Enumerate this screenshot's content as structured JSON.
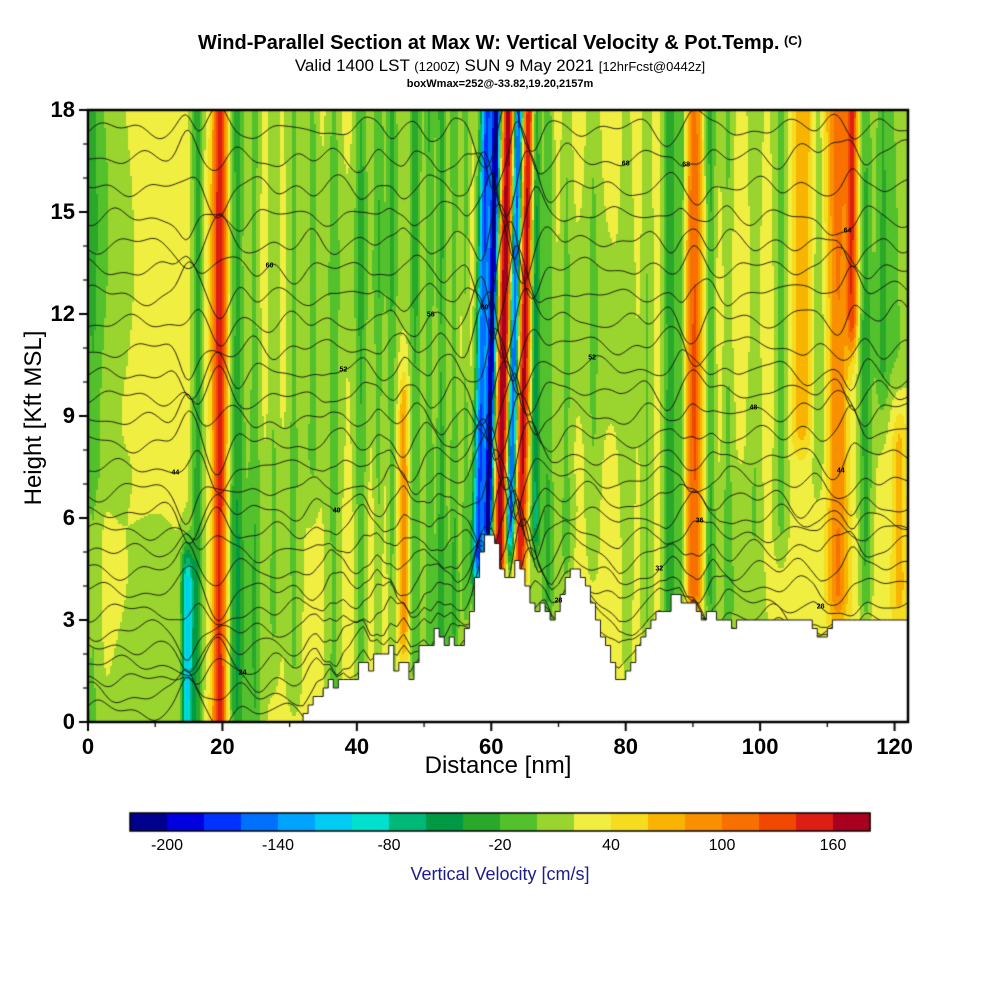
{
  "header": {
    "title_main": "Wind-Parallel Section at Max W: Vertical Velocity & Pot.Temp.",
    "title_suffix": "(C)",
    "valid_prefix": "Valid 1400 LST",
    "valid_zulu": "(1200Z)",
    "valid_date": "SUN 9 May 2021",
    "fcst_tag": "[12hrFcst@0442z]",
    "annotation": "boxWmax=252@-33.82,19.20,2157m"
  },
  "chart_data": {
    "type": "heatmap",
    "title": "Wind-Parallel Section at Max W: Vertical Velocity & Pot.Temp. (C)",
    "subtitle": "Valid 1400 LST (1200Z) SUN 9 May 2021 [12hrFcst@0442z]",
    "annotation": "boxWmax=252@-33.82,19.20,2157m",
    "xlabel": "Distance [nm]",
    "ylabel": "Height [Kft MSL]",
    "xlim": [
      0,
      122
    ],
    "ylim": [
      0,
      18
    ],
    "xticks": [
      0,
      20,
      40,
      60,
      80,
      100,
      120
    ],
    "yticks": [
      0,
      3,
      6,
      9,
      12,
      15,
      18
    ],
    "grid": false,
    "colorbar": {
      "label": "Vertical Velocity [cm/s]",
      "label_color": "#1c1c8a",
      "ticks": [
        -200,
        -140,
        -80,
        -20,
        40,
        100,
        160
      ],
      "range": [
        -220,
        180
      ],
      "segment_step": 20,
      "colors": [
        "#00008e",
        "#0000e0",
        "#0032ff",
        "#0070ff",
        "#00a4ff",
        "#00ccf4",
        "#00e0cc",
        "#00b878",
        "#009a44",
        "#2aa82a",
        "#52c12c",
        "#9ad42e",
        "#f0ee40",
        "#f6dc1e",
        "#f8b400",
        "#f89000",
        "#f87000",
        "#f04800",
        "#dc1e14",
        "#a8001e"
      ]
    },
    "field": {
      "units": "cm/s",
      "background_value": 26,
      "noise": [
        9,
        5
      ],
      "bands_format": [
        "x_nm",
        "width_nm",
        "amplitude_cms",
        "ybottom_kft",
        "ytop_kft",
        "tilt"
      ],
      "bands": [
        [
          0.6,
          1.2,
          -28,
          0,
          18,
          0
        ],
        [
          2,
          3,
          -16,
          8,
          18,
          0
        ],
        [
          4,
          4,
          -14,
          0,
          7,
          0
        ],
        [
          10,
          3,
          -12,
          0,
          5,
          0
        ],
        [
          33,
          5,
          -10,
          0,
          8,
          0
        ],
        [
          46,
          8,
          -12,
          13,
          18,
          0
        ],
        [
          70,
          4,
          -12,
          0,
          6,
          0
        ],
        [
          97,
          4,
          -10,
          3,
          10,
          0
        ],
        [
          120,
          3,
          -24,
          11,
          18,
          0
        ],
        [
          14.8,
          0.9,
          -130,
          0,
          4,
          0
        ],
        [
          16.3,
          0.8,
          -55,
          0,
          18,
          0
        ],
        [
          19.6,
          1.1,
          125,
          0,
          18,
          0
        ],
        [
          22.2,
          1.2,
          -60,
          0,
          18,
          0
        ],
        [
          24.8,
          0.9,
          -38,
          0,
          18,
          0
        ],
        [
          27.6,
          0.8,
          -24,
          3,
          18,
          0
        ],
        [
          30.6,
          0.9,
          -26,
          2,
          18,
          0
        ],
        [
          33.4,
          0.8,
          -28,
          8,
          18,
          0
        ],
        [
          36.6,
          1.0,
          -30,
          0,
          18,
          0
        ],
        [
          40.6,
          0.9,
          -42,
          1,
          18,
          0
        ],
        [
          43.2,
          0.7,
          -30,
          2,
          18,
          0
        ],
        [
          45.2,
          0.7,
          -34,
          2,
          18,
          0
        ],
        [
          47.0,
          0.7,
          58,
          3,
          9,
          0
        ],
        [
          48.7,
          0.8,
          -46,
          2,
          18,
          0
        ],
        [
          50.8,
          0.7,
          -40,
          3,
          18,
          0
        ],
        [
          52.6,
          0.8,
          -52,
          2,
          18,
          0
        ],
        [
          54.5,
          0.7,
          -42,
          3,
          18,
          0
        ],
        [
          56.2,
          0.6,
          -34,
          4,
          18,
          0
        ],
        [
          58.7,
          0.9,
          -190,
          5,
          18,
          0.1
        ],
        [
          60.2,
          0.65,
          -245,
          6,
          18,
          0.1
        ],
        [
          61.9,
          0.95,
          150,
          5,
          18,
          0.1
        ],
        [
          63.5,
          0.65,
          -205,
          6,
          18,
          0.1
        ],
        [
          65.0,
          0.9,
          138,
          5,
          18,
          0.1
        ],
        [
          66.6,
          0.7,
          -85,
          6,
          18,
          0
        ],
        [
          68.4,
          0.9,
          -42,
          4,
          18,
          0
        ],
        [
          71.2,
          0.8,
          -26,
          5,
          18,
          0
        ],
        [
          75.2,
          1.0,
          -22,
          5,
          18,
          0
        ],
        [
          80.2,
          1.0,
          -18,
          2,
          18,
          0
        ],
        [
          83.2,
          0.8,
          -26,
          3,
          18,
          0
        ],
        [
          86.6,
          1.0,
          -58,
          3,
          18,
          0
        ],
        [
          88.3,
          0.6,
          -40,
          4,
          18,
          0
        ],
        [
          90.2,
          1.2,
          92,
          4,
          18,
          0
        ],
        [
          92.6,
          0.8,
          -48,
          4,
          18,
          0
        ],
        [
          95.2,
          0.8,
          -28,
          4,
          18,
          0
        ],
        [
          99.2,
          0.9,
          -22,
          6,
          18,
          0
        ],
        [
          103.2,
          1.0,
          -32,
          6,
          18,
          0
        ],
        [
          106.2,
          1.6,
          52,
          9,
          18,
          0
        ],
        [
          108.7,
          0.8,
          -26,
          8,
          18,
          0
        ],
        [
          111.6,
          1.6,
          78,
          4,
          18,
          0
        ],
        [
          113.7,
          0.8,
          105,
          12,
          18,
          0
        ],
        [
          115.7,
          0.9,
          -48,
          4,
          18,
          0
        ],
        [
          118.2,
          1.0,
          -30,
          10,
          18,
          0
        ],
        [
          120.7,
          1.1,
          42,
          4,
          8,
          0
        ]
      ]
    },
    "contours": {
      "variable": "Potential Temperature",
      "unit": "C",
      "start": 18,
      "step": 2,
      "count": 27
    },
    "terrain_profile": [
      [
        0,
        0
      ],
      [
        32,
        0
      ],
      [
        33,
        0.5
      ],
      [
        34,
        0.9
      ],
      [
        35,
        0.7
      ],
      [
        36,
        1.3
      ],
      [
        37,
        0.9
      ],
      [
        38,
        1.4
      ],
      [
        39,
        1.1
      ],
      [
        40,
        1.3
      ],
      [
        41,
        2.0
      ],
      [
        42,
        1.5
      ],
      [
        43,
        2.2
      ],
      [
        44,
        1.7
      ],
      [
        45,
        2.3
      ],
      [
        46,
        1.5
      ],
      [
        47,
        1.9
      ],
      [
        48,
        1.2
      ],
      [
        49,
        1.7
      ],
      [
        50,
        2.5
      ],
      [
        51,
        2.1
      ],
      [
        52,
        2.7
      ],
      [
        53,
        2.2
      ],
      [
        54,
        2.6
      ],
      [
        55,
        2.1
      ],
      [
        56,
        2.5
      ],
      [
        57,
        3.2
      ],
      [
        58,
        4.3
      ],
      [
        59,
        5.3
      ],
      [
        60,
        5.5
      ],
      [
        61,
        5.2
      ],
      [
        62,
        4.2
      ],
      [
        63,
        4.3
      ],
      [
        64,
        4.8
      ],
      [
        65,
        4.2
      ],
      [
        66,
        3.5
      ],
      [
        67,
        3.1
      ],
      [
        68,
        3.6
      ],
      [
        69,
        2.9
      ],
      [
        70,
        3.2
      ],
      [
        71,
        4.2
      ],
      [
        72,
        4.6
      ],
      [
        73,
        4.4
      ],
      [
        74,
        4.1
      ],
      [
        75,
        3.5
      ],
      [
        76,
        2.9
      ],
      [
        77,
        2.4
      ],
      [
        78,
        1.8
      ],
      [
        79,
        1.1
      ],
      [
        80,
        1.3
      ],
      [
        81,
        1.7
      ],
      [
        82,
        2.3
      ],
      [
        83,
        2.7
      ],
      [
        84,
        3.0
      ],
      [
        85,
        3.4
      ],
      [
        86,
        3.2
      ],
      [
        87,
        3.6
      ],
      [
        88,
        3.8
      ],
      [
        89,
        3.4
      ],
      [
        90,
        3.6
      ],
      [
        91,
        3.1
      ],
      [
        92,
        3.0
      ],
      [
        93,
        3.4
      ],
      [
        94,
        2.9
      ],
      [
        95,
        3.0
      ],
      [
        96,
        2.8
      ],
      [
        97,
        2.9
      ],
      [
        98,
        3.0
      ],
      [
        100,
        3.0
      ],
      [
        102,
        3.1
      ],
      [
        104,
        3.0
      ],
      [
        106,
        3.0
      ],
      [
        108,
        2.9
      ],
      [
        109,
        2.5
      ],
      [
        110,
        2.6
      ],
      [
        111,
        2.9
      ],
      [
        112,
        3.0
      ],
      [
        114,
        3.0
      ],
      [
        116,
        3.1
      ],
      [
        118,
        3.0
      ],
      [
        120,
        3.0
      ],
      [
        122,
        3.0
      ]
    ]
  }
}
